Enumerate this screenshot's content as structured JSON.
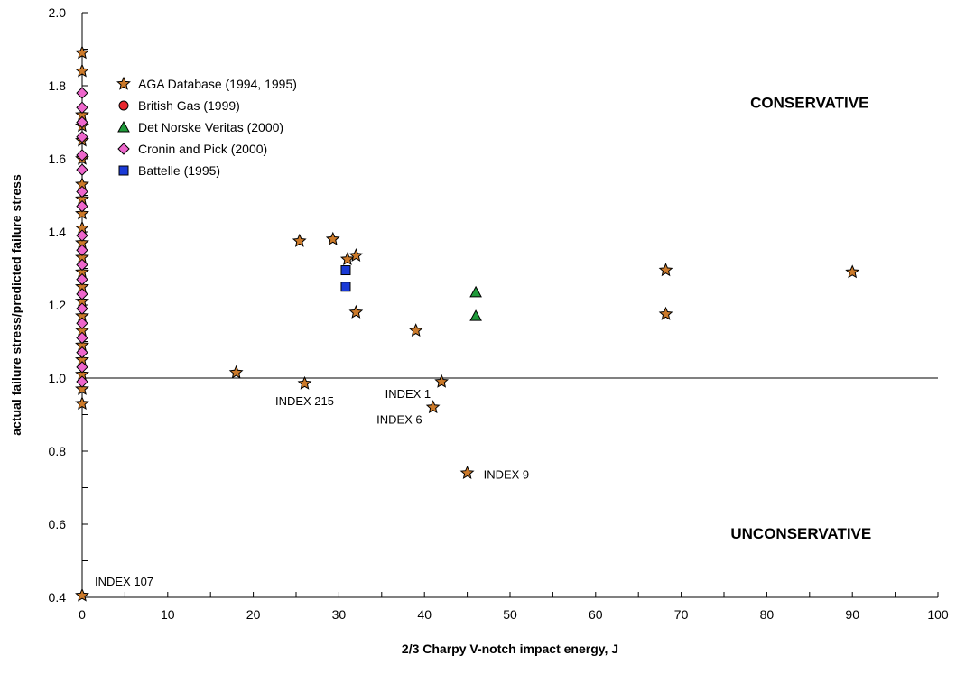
{
  "chart_data": {
    "type": "scatter",
    "xlabel": "2/3 Charpy V-notch impact energy, J",
    "ylabel": "actual failure stress/predicted failure stress",
    "xlim": [
      0,
      100
    ],
    "ylim": [
      0.4,
      2.0
    ],
    "x_ticks": [
      "0",
      "10",
      "20",
      "30",
      "40",
      "50",
      "60",
      "70",
      "80",
      "90",
      "100"
    ],
    "y_ticks": [
      "0.4",
      "0.6",
      "0.8",
      "1.0",
      "1.2",
      "1.4",
      "1.6",
      "1.8",
      "2.0"
    ],
    "reference_line_y": 1.0,
    "grid": false,
    "legend_position": "top-left",
    "series": [
      {
        "name": "AGA Database (1994, 1995)",
        "marker": "star",
        "color": "#cc7a2a",
        "points": [
          {
            "x": 0,
            "y": 1.89
          },
          {
            "x": 0,
            "y": 1.84
          },
          {
            "x": 0,
            "y": 1.72
          },
          {
            "x": 0,
            "y": 1.69
          },
          {
            "x": 0,
            "y": 1.65
          },
          {
            "x": 0,
            "y": 1.6
          },
          {
            "x": 0,
            "y": 1.53
          },
          {
            "x": 0,
            "y": 1.49
          },
          {
            "x": 0,
            "y": 1.45
          },
          {
            "x": 0,
            "y": 1.41
          },
          {
            "x": 0,
            "y": 1.37
          },
          {
            "x": 0,
            "y": 1.33
          },
          {
            "x": 0,
            "y": 1.29
          },
          {
            "x": 0,
            "y": 1.25
          },
          {
            "x": 0,
            "y": 1.21
          },
          {
            "x": 0,
            "y": 1.17
          },
          {
            "x": 0,
            "y": 1.13
          },
          {
            "x": 0,
            "y": 1.09
          },
          {
            "x": 0,
            "y": 1.05
          },
          {
            "x": 0,
            "y": 1.01
          },
          {
            "x": 0,
            "y": 0.97
          },
          {
            "x": 0,
            "y": 0.93
          },
          {
            "x": 0,
            "y": 0.405
          },
          {
            "x": 18,
            "y": 1.015
          },
          {
            "x": 25.4,
            "y": 1.375
          },
          {
            "x": 26,
            "y": 0.985
          },
          {
            "x": 29.3,
            "y": 1.38
          },
          {
            "x": 31,
            "y": 1.325
          },
          {
            "x": 32,
            "y": 1.335
          },
          {
            "x": 32,
            "y": 1.18
          },
          {
            "x": 39,
            "y": 1.13
          },
          {
            "x": 41,
            "y": 0.92
          },
          {
            "x": 42,
            "y": 0.99
          },
          {
            "x": 45,
            "y": 0.74
          },
          {
            "x": 68.2,
            "y": 1.295
          },
          {
            "x": 68.2,
            "y": 1.175
          },
          {
            "x": 90,
            "y": 1.29
          }
        ]
      },
      {
        "name": "British Gas (1999)",
        "marker": "circle",
        "color": "#e8262e",
        "points": []
      },
      {
        "name": "Det Norske Veritas (2000)",
        "marker": "triangle",
        "color": "#1f9a3a",
        "points": [
          {
            "x": 46,
            "y": 1.235
          },
          {
            "x": 46,
            "y": 1.17
          }
        ]
      },
      {
        "name": "Cronin and Pick (2000)",
        "marker": "diamond",
        "color": "#ee66cc",
        "points": [
          {
            "x": 0,
            "y": 1.78
          },
          {
            "x": 0,
            "y": 1.74
          },
          {
            "x": 0,
            "y": 1.7
          },
          {
            "x": 0,
            "y": 1.66
          },
          {
            "x": 0,
            "y": 1.61
          },
          {
            "x": 0,
            "y": 1.57
          },
          {
            "x": 0,
            "y": 1.51
          },
          {
            "x": 0,
            "y": 1.47
          },
          {
            "x": 0,
            "y": 1.39
          },
          {
            "x": 0,
            "y": 1.35
          },
          {
            "x": 0,
            "y": 1.31
          },
          {
            "x": 0,
            "y": 1.27
          },
          {
            "x": 0,
            "y": 1.23
          },
          {
            "x": 0,
            "y": 1.19
          },
          {
            "x": 0,
            "y": 1.15
          },
          {
            "x": 0,
            "y": 1.11
          },
          {
            "x": 0,
            "y": 1.07
          },
          {
            "x": 0,
            "y": 1.03
          },
          {
            "x": 0,
            "y": 0.99
          }
        ]
      },
      {
        "name": "Battelle (1995)",
        "marker": "square",
        "color": "#1a3ad6",
        "points": [
          {
            "x": 30.8,
            "y": 1.295
          },
          {
            "x": 30.8,
            "y": 1.25
          }
        ]
      }
    ],
    "annotations": [
      {
        "text": "INDEX 215",
        "x": 26,
        "y": 0.985,
        "anchor": "below"
      },
      {
        "text": "INDEX 1",
        "x": 42,
        "y": 0.99,
        "anchor": "left"
      },
      {
        "text": "INDEX 6",
        "x": 41,
        "y": 0.92,
        "anchor": "left"
      },
      {
        "text": "INDEX 9",
        "x": 45,
        "y": 0.74,
        "anchor": "right"
      },
      {
        "text": "INDEX 107",
        "x": 0,
        "y": 0.405,
        "anchor": "above-right"
      }
    ],
    "region_labels": [
      {
        "text": "CONSERVATIVE",
        "x": 85,
        "y": 1.74
      },
      {
        "text": "UNCONSERVATIVE",
        "x": 84,
        "y": 0.56
      }
    ]
  }
}
